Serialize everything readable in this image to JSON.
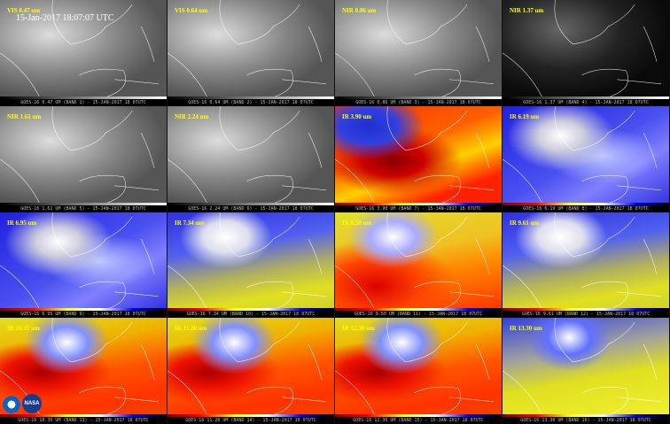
{
  "timestamp": "15-Jan-2017 18:07:07 UTC",
  "panels": [
    {
      "label": "VIS 0.47 um",
      "footer": "GOES-16 0.47 UM (BAND 1) - 15-JAN-2017 18 07UTC",
      "style": "gray"
    },
    {
      "label": "VIS 0.64 um",
      "footer": "GOES-16 0.64 UM (BAND 2) - 15-JAN-2017 18 07UTC",
      "style": "gray"
    },
    {
      "label": "NIR 0.86 um",
      "footer": "GOES-16 0.86 UM (BAND 3) - 15-JAN-2017 18 07UTC",
      "style": "gray"
    },
    {
      "label": "NIR 1.37 um",
      "footer": "GOES-16 1.37 UM (BAND 4) - 15-JAN-2017 18 07UTC",
      "style": "dark"
    },
    {
      "label": "NIR 1.61 um",
      "footer": "GOES-16 1.61 UM (BAND 5) - 15-JAN-2017 18 07UTC",
      "style": "gray"
    },
    {
      "label": "NIR 2.24 um",
      "footer": "GOES-16 2.24 UM (BAND 6) - 15-JAN-2017 18 07UTC",
      "style": "gray"
    },
    {
      "label": "IR 3.90 um",
      "footer": "GOES-16 3.90 UM (BAND 7) - 15-JAN-2017 18 07UTC",
      "style": "hot"
    },
    {
      "label": "IR 6.19 um",
      "footer": "GOES-16 6.19 UM (BAND 8) - 15-JAN-2017 18 07UTC",
      "style": "blue"
    },
    {
      "label": "IR 6.95 um",
      "footer": "GOES-16 6.95 UM (BAND 9) - 15-JAN-2017 18 07UTC",
      "style": "blue"
    },
    {
      "label": "IR 7.34 um",
      "footer": "GOES-16 7.34 UM (BAND 10) - 15-JAN-2017 18 07UTC",
      "style": "blueyellow"
    },
    {
      "label": "IR 8.50 um",
      "footer": "GOES-16 8.50 UM (BAND 11) - 15-JAN-2017 18 07UTC",
      "style": "yellowred"
    },
    {
      "label": "IR 9.61 um",
      "footer": "GOES-16 9.61 UM (BAND 12) - 15-JAN-2017 18 07UTC",
      "style": "blueyellow"
    },
    {
      "label": "IR 10.35 um",
      "footer": "GOES-16 10.35 UM (BAND 13) - 15-JAN-2017 18 07UTC",
      "style": "ir"
    },
    {
      "label": "IR 11.20 um",
      "footer": "GOES-16 11.20 UM (BAND 14) - 15-JAN-2017 18 07UTC",
      "style": "ir"
    },
    {
      "label": "IR 12.30 um",
      "footer": "GOES-16 12.30 UM (BAND 15) - 15-JAN-2017 18 07UTC",
      "style": "ir"
    },
    {
      "label": "IR 13.30 um",
      "footer": "GOES-16 13.30 UM (BAND 16) - 15-JAN-2017 18 07UTC",
      "style": "yellowblue"
    }
  ],
  "logos": [
    "NOAA",
    "NASA"
  ]
}
